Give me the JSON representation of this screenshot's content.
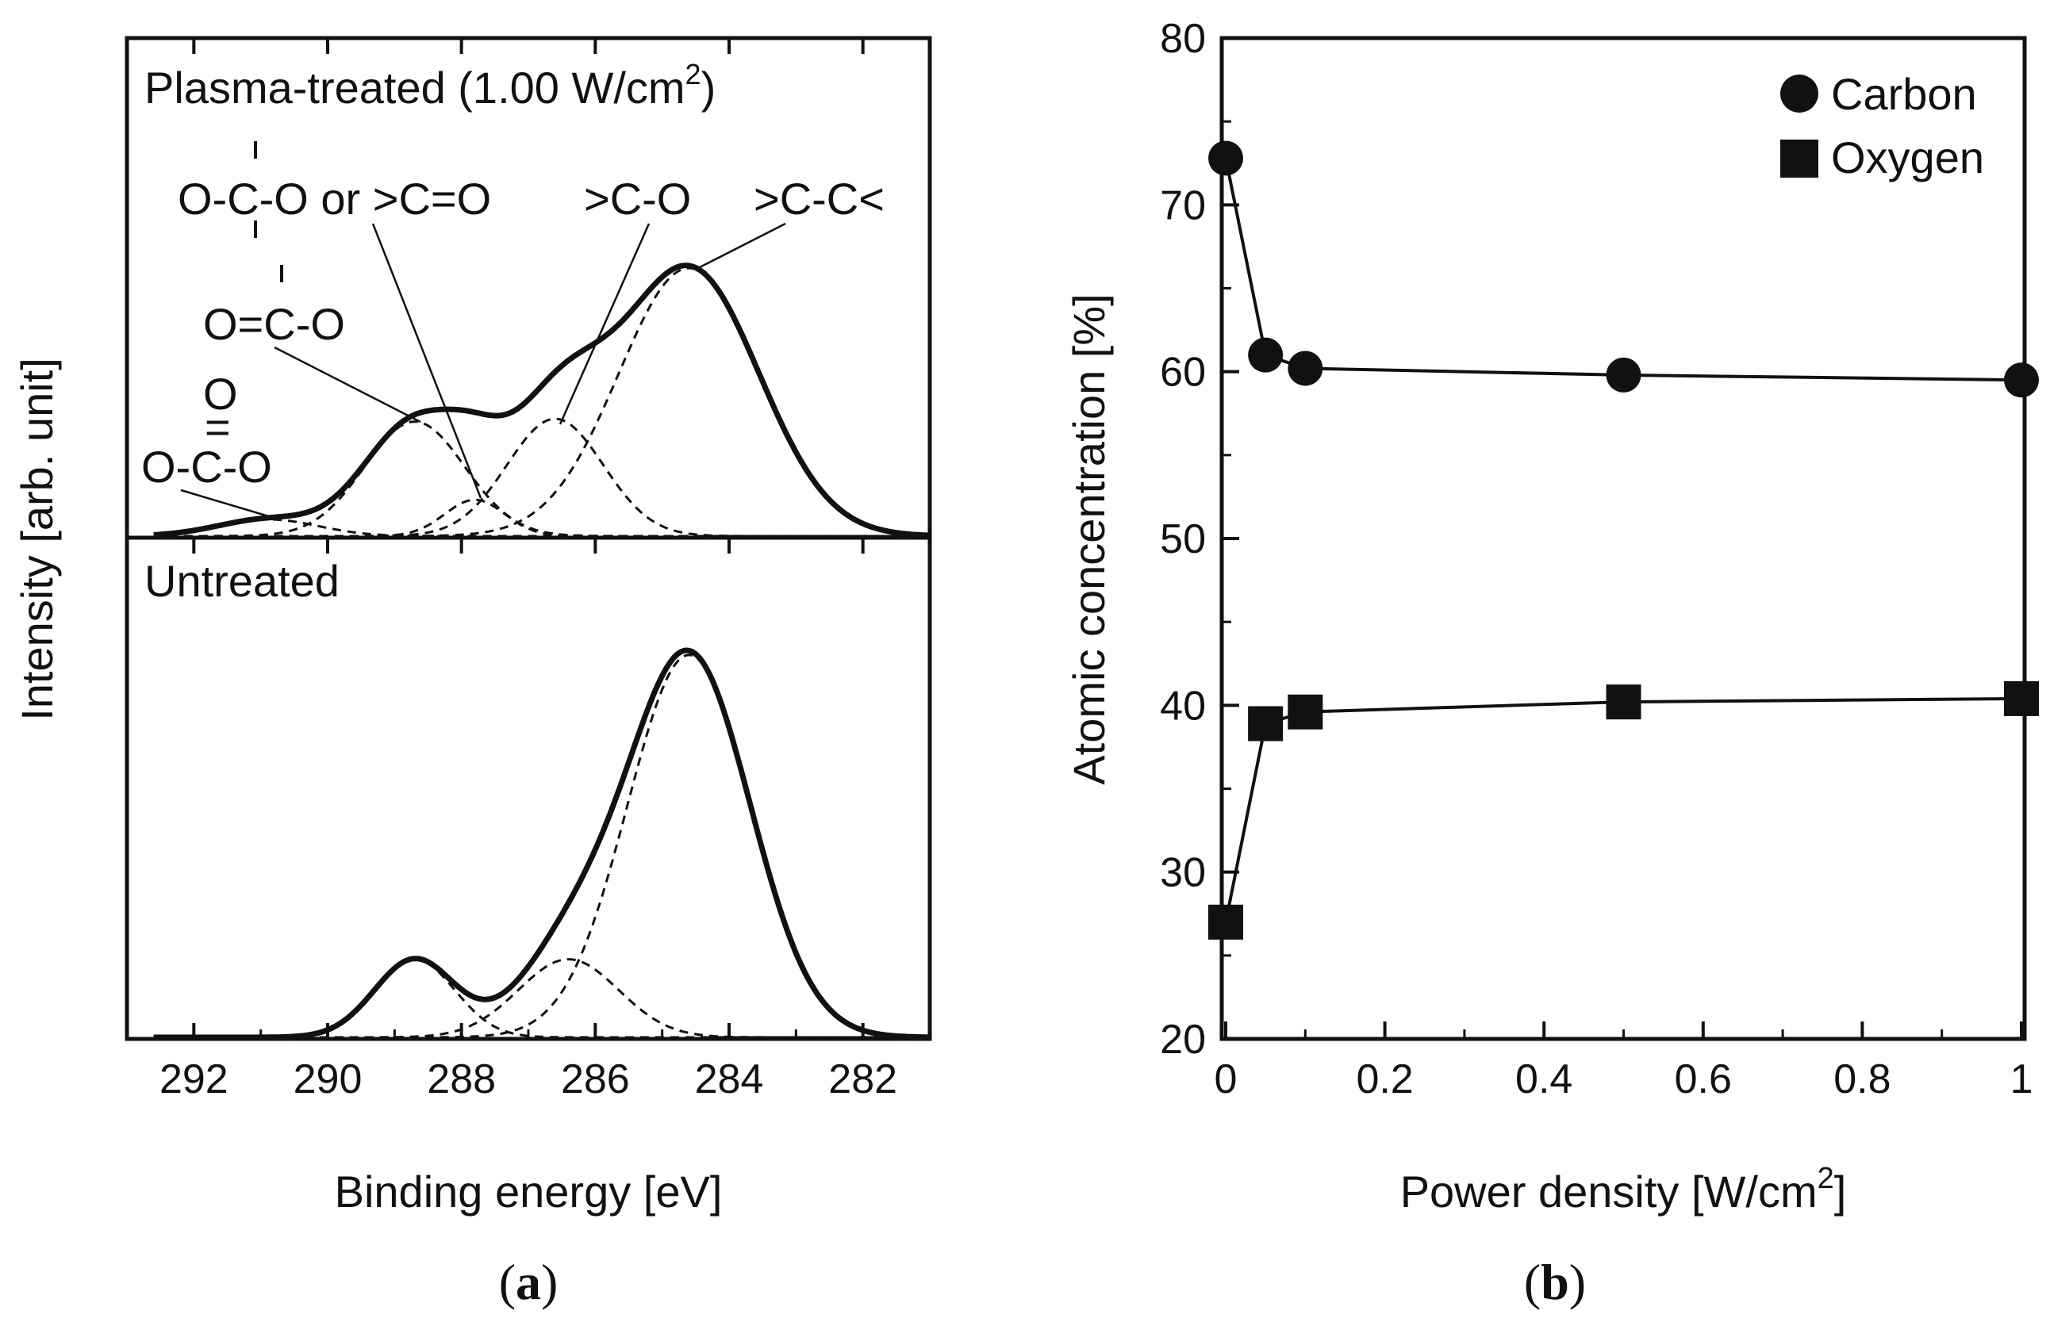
{
  "panel_labels": {
    "a": "a",
    "b": "b"
  },
  "chart_data": [
    {
      "type": "line",
      "panel": "a",
      "xlabel": "Binding energy [eV]",
      "ylabel": "Intensity [arb. unit]",
      "xlim": [
        293,
        281
      ],
      "xticks": [
        292,
        290,
        288,
        286,
        284,
        282
      ],
      "xtick_labels": [
        "292",
        "290",
        "288",
        "286",
        "284",
        "282"
      ],
      "subpanels": [
        {
          "name": "plasma-treated",
          "title": "Plasma-treated (1.00 W/cm",
          "title_sup": "2",
          "title_close": ")",
          "envelope_peak": 1.0,
          "components": [
            {
              "name": "O=C(-O)-O",
              "center": 290.9,
              "height": 0.06,
              "width": 0.75
            },
            {
              "name": "O=C-O",
              "center": 288.7,
              "height": 0.41,
              "width": 0.75
            },
            {
              "name": "O-C-O or >C=O",
              "center": 287.8,
              "height": 0.13,
              "width": 0.45
            },
            {
              "name": ">C-O",
              "center": 286.6,
              "height": 0.42,
              "width": 0.72
            },
            {
              "name": ">C-C<",
              "center": 284.6,
              "height": 0.96,
              "width": 1.05
            }
          ],
          "annotations": [
            {
              "name": "carbonate-top",
              "text": "O"
            },
            {
              "name": "carbonate-double-bond",
              "text": "="
            },
            {
              "name": "carbonate-bottom",
              "text": "O-C-O"
            },
            {
              "name": "ester",
              "text": "O=C-O"
            },
            {
              "name": "acetal-or-carbonyl",
              "text": "O-C-O or >C=O"
            },
            {
              "name": "ether",
              "text": ">C-O"
            },
            {
              "name": "hydrocarbon",
              "text": ">C-C<"
            }
          ]
        },
        {
          "name": "untreated",
          "title": "Untreated",
          "components": [
            {
              "name": "O=C-O",
              "center": 288.7,
              "height": 0.2,
              "width": 0.6
            },
            {
              "name": ">C-O",
              "center": 286.4,
              "height": 0.2,
              "width": 0.75
            },
            {
              "name": ">C-C<",
              "center": 284.6,
              "height": 0.98,
              "width": 0.92
            }
          ]
        }
      ]
    },
    {
      "type": "line",
      "panel": "b",
      "xlabel": "Power density [W/cm",
      "xlabel_sup": "2",
      "xlabel_close": "]",
      "ylabel": "Atomic concentration [%]",
      "xlim": [
        0,
        1
      ],
      "ylim": [
        20,
        80
      ],
      "xticks": [
        0,
        0.2,
        0.4,
        0.6,
        0.8,
        1
      ],
      "xtick_labels": [
        "0",
        "0.2",
        "0.4",
        "0.6",
        "0.8",
        "1"
      ],
      "yticks": [
        20,
        30,
        40,
        50,
        60,
        70,
        80
      ],
      "ytick_labels": [
        "20",
        "30",
        "40",
        "50",
        "60",
        "70",
        "80"
      ],
      "legend_position": "top-right",
      "series": [
        {
          "name": "Carbon",
          "marker": "circle",
          "x": [
            0,
            0.05,
            0.1,
            0.5,
            1
          ],
          "y": [
            72.8,
            61.0,
            60.2,
            59.8,
            59.5
          ]
        },
        {
          "name": "Oxygen",
          "marker": "square",
          "x": [
            0,
            0.05,
            0.1,
            0.5,
            1
          ],
          "y": [
            27.0,
            38.9,
            39.6,
            40.2,
            40.4
          ]
        }
      ]
    }
  ]
}
